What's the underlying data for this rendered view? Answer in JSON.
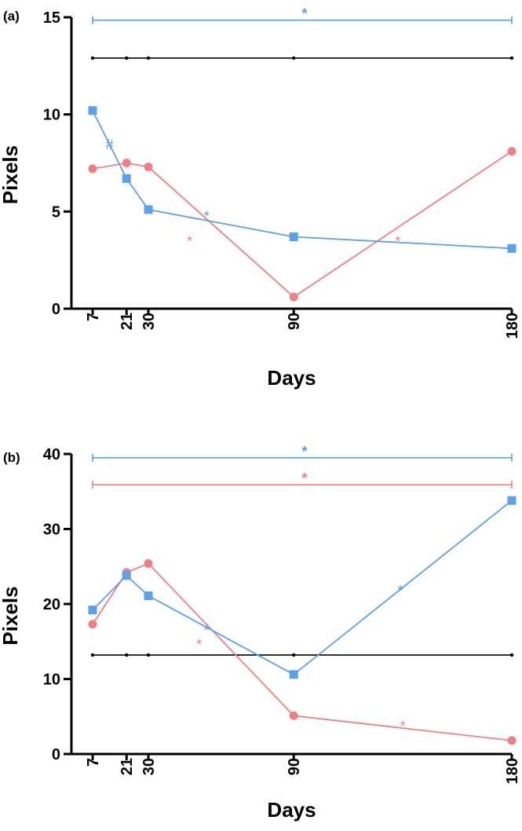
{
  "colors": {
    "blue": "#5aa0ec",
    "red": "#f07f83",
    "black": "#000000"
  },
  "chart_data": [
    {
      "type": "line",
      "panel_label": "(a)",
      "xlabel": "Days",
      "ylabel": "Pixels",
      "x": [
        7,
        21,
        30,
        90,
        180
      ],
      "x_tick_labels": [
        "7",
        "21",
        "30",
        "90",
        "180"
      ],
      "ylim": [
        0,
        15
      ],
      "y_ticks": [
        0,
        5,
        10,
        15
      ],
      "y_tick_labels": [
        "0",
        "5",
        "10",
        "15"
      ],
      "series": [
        {
          "name": "red",
          "marker": "circle",
          "color": "#f07f83",
          "values": [
            7.2,
            7.5,
            7.3,
            0.6,
            8.1
          ]
        },
        {
          "name": "blue",
          "marker": "square",
          "color": "#5aa0ec",
          "values": [
            10.2,
            6.7,
            5.1,
            3.7,
            3.1
          ]
        }
      ],
      "brackets": [
        {
          "color": "#5aa0ec",
          "y": 14.85,
          "x_start": 7,
          "x_end": 180,
          "label": "*",
          "caps": true,
          "nodes": []
        },
        {
          "color": "#000000",
          "y": 12.9,
          "x_start": 7,
          "x_end": 180,
          "label": "",
          "caps": false,
          "nodes": [
            7,
            21,
            30,
            90,
            180
          ]
        }
      ],
      "annotations": [
        {
          "text": "#",
          "color": "#5aa0ec",
          "x": 14,
          "y": 8.5
        },
        {
          "text": "*",
          "color": "#5aa0ec",
          "x": 54,
          "y": 4.8
        },
        {
          "text": "*",
          "color": "#f07f83",
          "x": 47,
          "y": 3.5
        },
        {
          "text": "*",
          "color": "#f07f83",
          "x": 133,
          "y": 3.5
        }
      ]
    },
    {
      "type": "line",
      "panel_label": "(b)",
      "xlabel": "Days",
      "ylabel": "Pixels",
      "x": [
        7,
        21,
        30,
        90,
        180
      ],
      "x_tick_labels": [
        "7",
        "21",
        "30",
        "90",
        "180"
      ],
      "ylim": [
        0,
        40
      ],
      "y_ticks": [
        0,
        10,
        20,
        30,
        40
      ],
      "y_tick_labels": [
        "0",
        "10",
        "20",
        "30",
        "40"
      ],
      "series": [
        {
          "name": "red",
          "marker": "circle",
          "color": "#f07f83",
          "values": [
            17.3,
            24.2,
            25.4,
            5.1,
            1.8
          ]
        },
        {
          "name": "blue",
          "marker": "square",
          "color": "#5aa0ec",
          "values": [
            19.2,
            23.8,
            21.1,
            10.6,
            33.8
          ]
        }
      ],
      "brackets": [
        {
          "color": "#5aa0ec",
          "y": 39.5,
          "x_start": 7,
          "x_end": 180,
          "label": "*",
          "caps": true,
          "nodes": []
        },
        {
          "color": "#f07f83",
          "y": 35.9,
          "x_start": 7,
          "x_end": 180,
          "label": "*",
          "caps": true,
          "nodes": []
        },
        {
          "color": "#000000",
          "y": 13.2,
          "x_start": 7,
          "x_end": 180,
          "label": "",
          "caps": false,
          "nodes": [
            7,
            21,
            30,
            90,
            180
          ]
        }
      ],
      "annotations": [
        {
          "text": "*",
          "color": "#5aa0ec",
          "x": 54,
          "y": 16.6
        },
        {
          "text": "*",
          "color": "#f07f83",
          "x": 51,
          "y": 14.7
        },
        {
          "text": "*",
          "color": "#5aa0ec",
          "x": 134,
          "y": 21.9
        },
        {
          "text": "*",
          "color": "#f07f83",
          "x": 135,
          "y": 3.8
        }
      ]
    }
  ]
}
